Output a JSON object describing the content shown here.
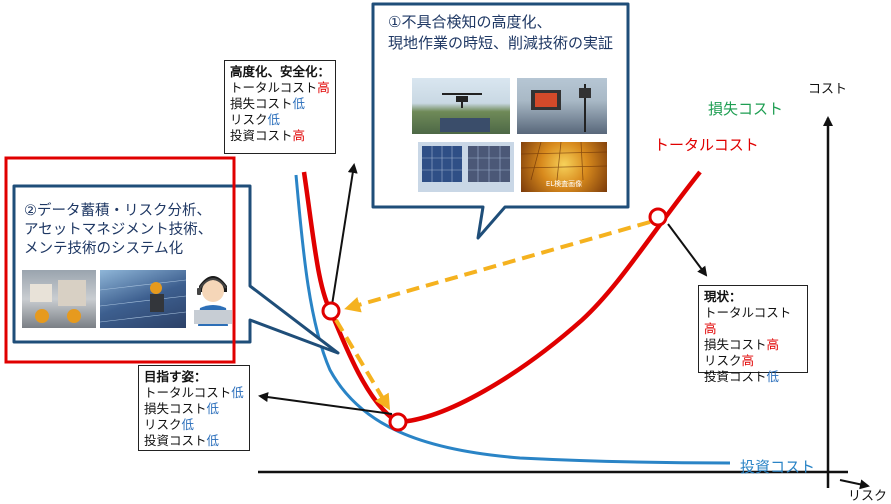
{
  "colors": {
    "total_cost": "#e00000",
    "loss_cost": "#1e9e52",
    "investment_cost": "#2a84c6",
    "arrow_orange": "#f5b21f",
    "callout_border": "#1f4e79",
    "highlight_red": "#e00000"
  },
  "axes": {
    "y_label": "コスト",
    "x_label": "リスク"
  },
  "curve_labels": {
    "loss": "損失コスト",
    "total": "トータルコスト",
    "investment": "投資コスト"
  },
  "callout_top": {
    "line1": "①不具合検知の高度化、",
    "line2": "現地作業の時短、削減技術の実証",
    "el_caption": "EL検査画像"
  },
  "callout_left": {
    "line1": "②データ蓄積・リスク分析、",
    "line2": "アセットマネジメント技術、",
    "line3": "メンテ技術のシステム化"
  },
  "box_advanced": {
    "heading": "高度化、安全化：",
    "items": [
      {
        "name": "トータルコスト",
        "level": "高"
      },
      {
        "name": "損失コスト",
        "level": "低"
      },
      {
        "name": "リスク",
        "level": "低"
      },
      {
        "name": "投資コスト",
        "level": "高"
      }
    ]
  },
  "box_current": {
    "heading": "現状：",
    "items": [
      {
        "name": "トータルコスト",
        "level": "高"
      },
      {
        "name": "損失コスト",
        "level": "高"
      },
      {
        "name": "リスク",
        "level": "高"
      },
      {
        "name": "投資コスト",
        "level": "低"
      }
    ]
  },
  "box_target": {
    "heading": "目指す姿：",
    "items": [
      {
        "name": "トータルコスト",
        "level": "低"
      },
      {
        "name": "損失コスト",
        "level": "低"
      },
      {
        "name": "リスク",
        "level": "低"
      },
      {
        "name": "投資コスト",
        "level": "低"
      }
    ]
  }
}
